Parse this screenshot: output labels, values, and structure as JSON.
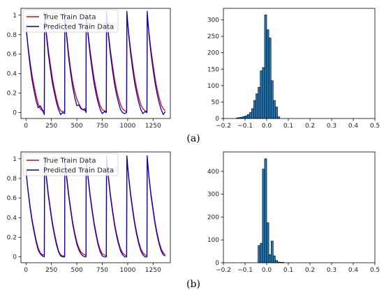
{
  "panels": [
    {
      "label": "(a)"
    },
    {
      "label": "(b)"
    }
  ],
  "colors": {
    "true_series": "#e00000",
    "pred_series": "#0000cc",
    "hist_fill": "#1f77b4",
    "hist_edge": "#000000"
  },
  "chart_data": [
    {
      "type": "line",
      "panel": "a",
      "title": "",
      "xlabel": "",
      "ylabel": "",
      "xlim": [
        -50,
        1420
      ],
      "ylim": [
        -0.06,
        1.07
      ],
      "xticks": [
        0,
        250,
        500,
        750,
        1000,
        1250
      ],
      "yticks": [
        0.0,
        0.2,
        0.4,
        0.6,
        0.8,
        1.0
      ],
      "legend_position": "upper-left",
      "series": [
        {
          "name": "True Train Data",
          "color": "#e00000",
          "x": [
            0,
            20,
            40,
            60,
            80,
            100,
            120,
            140,
            160,
            180,
            182,
            200,
            220,
            240,
            260,
            280,
            300,
            320,
            340,
            360,
            380,
            382,
            400,
            420,
            440,
            460,
            480,
            500,
            520,
            540,
            560,
            580,
            590,
            592,
            610,
            630,
            650,
            670,
            690,
            710,
            730,
            750,
            770,
            790,
            792,
            810,
            830,
            850,
            870,
            890,
            910,
            930,
            950,
            970,
            990,
            992,
            1010,
            1030,
            1050,
            1070,
            1090,
            1110,
            1130,
            1150,
            1170,
            1190,
            1192,
            1210,
            1230,
            1250,
            1270,
            1290,
            1310,
            1330,
            1350,
            1370
          ],
          "y": [
            0.86,
            0.68,
            0.52,
            0.38,
            0.27,
            0.17,
            0.09,
            0.04,
            0.02,
            0.02,
            1.0,
            0.82,
            0.64,
            0.49,
            0.35,
            0.24,
            0.14,
            0.06,
            0.02,
            0.01,
            0.01,
            1.0,
            0.8,
            0.6,
            0.44,
            0.31,
            0.21,
            0.14,
            0.09,
            0.05,
            0.03,
            0.02,
            0.01,
            1.0,
            0.82,
            0.64,
            0.49,
            0.35,
            0.24,
            0.14,
            0.07,
            0.03,
            0.02,
            0.01,
            1.0,
            0.82,
            0.64,
            0.49,
            0.35,
            0.24,
            0.15,
            0.08,
            0.04,
            0.02,
            0.01,
            1.0,
            0.82,
            0.64,
            0.49,
            0.35,
            0.24,
            0.15,
            0.08,
            0.04,
            0.02,
            0.01,
            1.0,
            0.82,
            0.64,
            0.49,
            0.35,
            0.24,
            0.15,
            0.08,
            0.04,
            0.02
          ]
        },
        {
          "name": "Predicted Train Data",
          "color": "#0000cc",
          "x": [
            0,
            20,
            40,
            60,
            80,
            100,
            120,
            140,
            160,
            180,
            182,
            200,
            220,
            240,
            260,
            280,
            300,
            320,
            340,
            360,
            380,
            382,
            400,
            420,
            440,
            460,
            480,
            500,
            520,
            540,
            560,
            580,
            590,
            592,
            610,
            630,
            650,
            670,
            690,
            710,
            730,
            750,
            770,
            790,
            792,
            810,
            830,
            850,
            870,
            890,
            910,
            930,
            950,
            970,
            990,
            992,
            1010,
            1030,
            1050,
            1070,
            1090,
            1110,
            1130,
            1150,
            1170,
            1190,
            1192,
            1210,
            1230,
            1250,
            1270,
            1290,
            1310,
            1330,
            1350,
            1370
          ],
          "y": [
            0.9,
            0.66,
            0.48,
            0.33,
            0.22,
            0.12,
            0.05,
            0.07,
            0.03,
            -0.02,
            1.04,
            0.8,
            0.6,
            0.44,
            0.3,
            0.2,
            0.1,
            0.03,
            -0.02,
            0.0,
            -0.01,
            1.03,
            0.78,
            0.56,
            0.4,
            0.26,
            0.15,
            0.07,
            0.08,
            0.04,
            0.03,
            0.04,
            0.0,
            1.03,
            0.8,
            0.6,
            0.44,
            0.3,
            0.19,
            0.1,
            0.03,
            -0.01,
            0.01,
            0.0,
            1.04,
            0.8,
            0.6,
            0.44,
            0.3,
            0.19,
            0.1,
            0.03,
            0.0,
            -0.01,
            0.0,
            1.04,
            0.8,
            0.6,
            0.44,
            0.3,
            0.19,
            0.1,
            0.03,
            -0.01,
            0.01,
            0.0,
            1.04,
            0.8,
            0.6,
            0.44,
            0.3,
            0.19,
            0.1,
            0.03,
            -0.02,
            0.01
          ]
        }
      ]
    },
    {
      "type": "bar",
      "subtype": "histogram",
      "panel": "a",
      "title": "",
      "xlabel": "",
      "ylabel": "",
      "xlim": [
        -0.2,
        0.5
      ],
      "ylim": [
        0,
        335
      ],
      "xticks": [
        -0.2,
        -0.1,
        0.0,
        0.1,
        0.2,
        0.3,
        0.4,
        0.5
      ],
      "yticks": [
        0,
        50,
        100,
        150,
        200,
        250,
        300
      ],
      "bin_edges": [
        -0.14,
        -0.13,
        -0.12,
        -0.11,
        -0.1,
        -0.09,
        -0.08,
        -0.07,
        -0.06,
        -0.05,
        -0.04,
        -0.03,
        -0.02,
        -0.01,
        0.0,
        0.01,
        0.02,
        0.03,
        0.04,
        0.05,
        0.06
      ],
      "values": [
        2,
        3,
        4,
        6,
        8,
        12,
        18,
        30,
        55,
        75,
        95,
        145,
        155,
        315,
        270,
        245,
        115,
        55,
        35,
        5
      ]
    },
    {
      "type": "line",
      "panel": "b",
      "title": "",
      "xlabel": "",
      "ylabel": "",
      "xlim": [
        -50,
        1420
      ],
      "ylim": [
        -0.06,
        1.07
      ],
      "xticks": [
        0,
        250,
        500,
        750,
        1000,
        1250
      ],
      "yticks": [
        0.0,
        0.2,
        0.4,
        0.6,
        0.8,
        1.0
      ],
      "legend_position": "upper-left",
      "series": [
        {
          "name": "True Train Data",
          "color": "#e00000",
          "x": [
            0,
            20,
            40,
            60,
            80,
            100,
            120,
            140,
            160,
            180,
            182,
            200,
            220,
            240,
            260,
            280,
            300,
            320,
            340,
            360,
            380,
            382,
            400,
            420,
            440,
            460,
            480,
            500,
            520,
            540,
            560,
            580,
            590,
            592,
            610,
            630,
            650,
            670,
            690,
            710,
            730,
            750,
            770,
            790,
            792,
            810,
            830,
            850,
            870,
            890,
            910,
            930,
            950,
            970,
            990,
            992,
            1010,
            1030,
            1050,
            1070,
            1090,
            1110,
            1130,
            1150,
            1170,
            1190,
            1192,
            1210,
            1230,
            1250,
            1270,
            1290,
            1310,
            1330,
            1350,
            1370
          ],
          "y": [
            0.86,
            0.68,
            0.52,
            0.38,
            0.27,
            0.17,
            0.09,
            0.04,
            0.02,
            0.02,
            1.0,
            0.82,
            0.64,
            0.49,
            0.35,
            0.24,
            0.14,
            0.06,
            0.02,
            0.01,
            0.01,
            1.0,
            0.82,
            0.64,
            0.49,
            0.35,
            0.24,
            0.15,
            0.09,
            0.05,
            0.03,
            0.02,
            0.01,
            1.0,
            0.82,
            0.64,
            0.49,
            0.35,
            0.24,
            0.14,
            0.07,
            0.03,
            0.02,
            0.01,
            1.0,
            0.82,
            0.64,
            0.49,
            0.35,
            0.24,
            0.15,
            0.08,
            0.04,
            0.02,
            0.01,
            1.0,
            0.82,
            0.64,
            0.49,
            0.35,
            0.24,
            0.15,
            0.08,
            0.04,
            0.02,
            0.01,
            1.0,
            0.82,
            0.64,
            0.49,
            0.35,
            0.24,
            0.15,
            0.08,
            0.04,
            0.02
          ]
        },
        {
          "name": "Predicted Train Data",
          "color": "#0000cc",
          "x": [
            0,
            20,
            40,
            60,
            80,
            100,
            120,
            140,
            160,
            180,
            182,
            200,
            220,
            240,
            260,
            280,
            300,
            320,
            340,
            360,
            380,
            382,
            400,
            420,
            440,
            460,
            480,
            500,
            520,
            540,
            560,
            580,
            590,
            592,
            610,
            630,
            650,
            670,
            690,
            710,
            730,
            750,
            770,
            790,
            792,
            810,
            830,
            850,
            870,
            890,
            910,
            930,
            950,
            970,
            990,
            992,
            1010,
            1030,
            1050,
            1070,
            1090,
            1110,
            1130,
            1150,
            1170,
            1190,
            1192,
            1210,
            1230,
            1250,
            1270,
            1290,
            1310,
            1330,
            1350,
            1370
          ],
          "y": [
            0.88,
            0.67,
            0.5,
            0.36,
            0.25,
            0.15,
            0.07,
            0.03,
            0.01,
            0.0,
            1.02,
            0.81,
            0.62,
            0.47,
            0.33,
            0.22,
            0.12,
            0.05,
            0.01,
            0.0,
            0.0,
            1.02,
            0.8,
            0.62,
            0.47,
            0.33,
            0.22,
            0.13,
            0.07,
            0.03,
            0.01,
            0.0,
            0.0,
            1.02,
            0.81,
            0.62,
            0.47,
            0.33,
            0.22,
            0.12,
            0.05,
            0.01,
            0.0,
            0.0,
            1.03,
            0.81,
            0.62,
            0.47,
            0.33,
            0.22,
            0.13,
            0.06,
            0.02,
            0.0,
            0.0,
            1.03,
            0.81,
            0.62,
            0.47,
            0.33,
            0.22,
            0.13,
            0.06,
            0.02,
            0.0,
            0.0,
            1.03,
            0.81,
            0.62,
            0.47,
            0.33,
            0.22,
            0.13,
            0.06,
            0.02,
            0.01
          ]
        }
      ]
    },
    {
      "type": "bar",
      "subtype": "histogram",
      "panel": "b",
      "title": "",
      "xlabel": "",
      "ylabel": "",
      "xlim": [
        -0.2,
        0.5
      ],
      "ylim": [
        0,
        485
      ],
      "xticks": [
        -0.2,
        -0.1,
        0.0,
        0.1,
        0.2,
        0.3,
        0.4,
        0.5
      ],
      "yticks": [
        0,
        100,
        200,
        300,
        400
      ],
      "bin_edges": [
        -0.04,
        -0.03,
        -0.02,
        -0.01,
        0.0,
        0.01,
        0.02,
        0.03,
        0.04,
        0.05,
        0.06,
        0.07,
        0.08
      ],
      "values": [
        75,
        85,
        410,
        455,
        175,
        35,
        95,
        30,
        10,
        3,
        2,
        2
      ]
    }
  ]
}
